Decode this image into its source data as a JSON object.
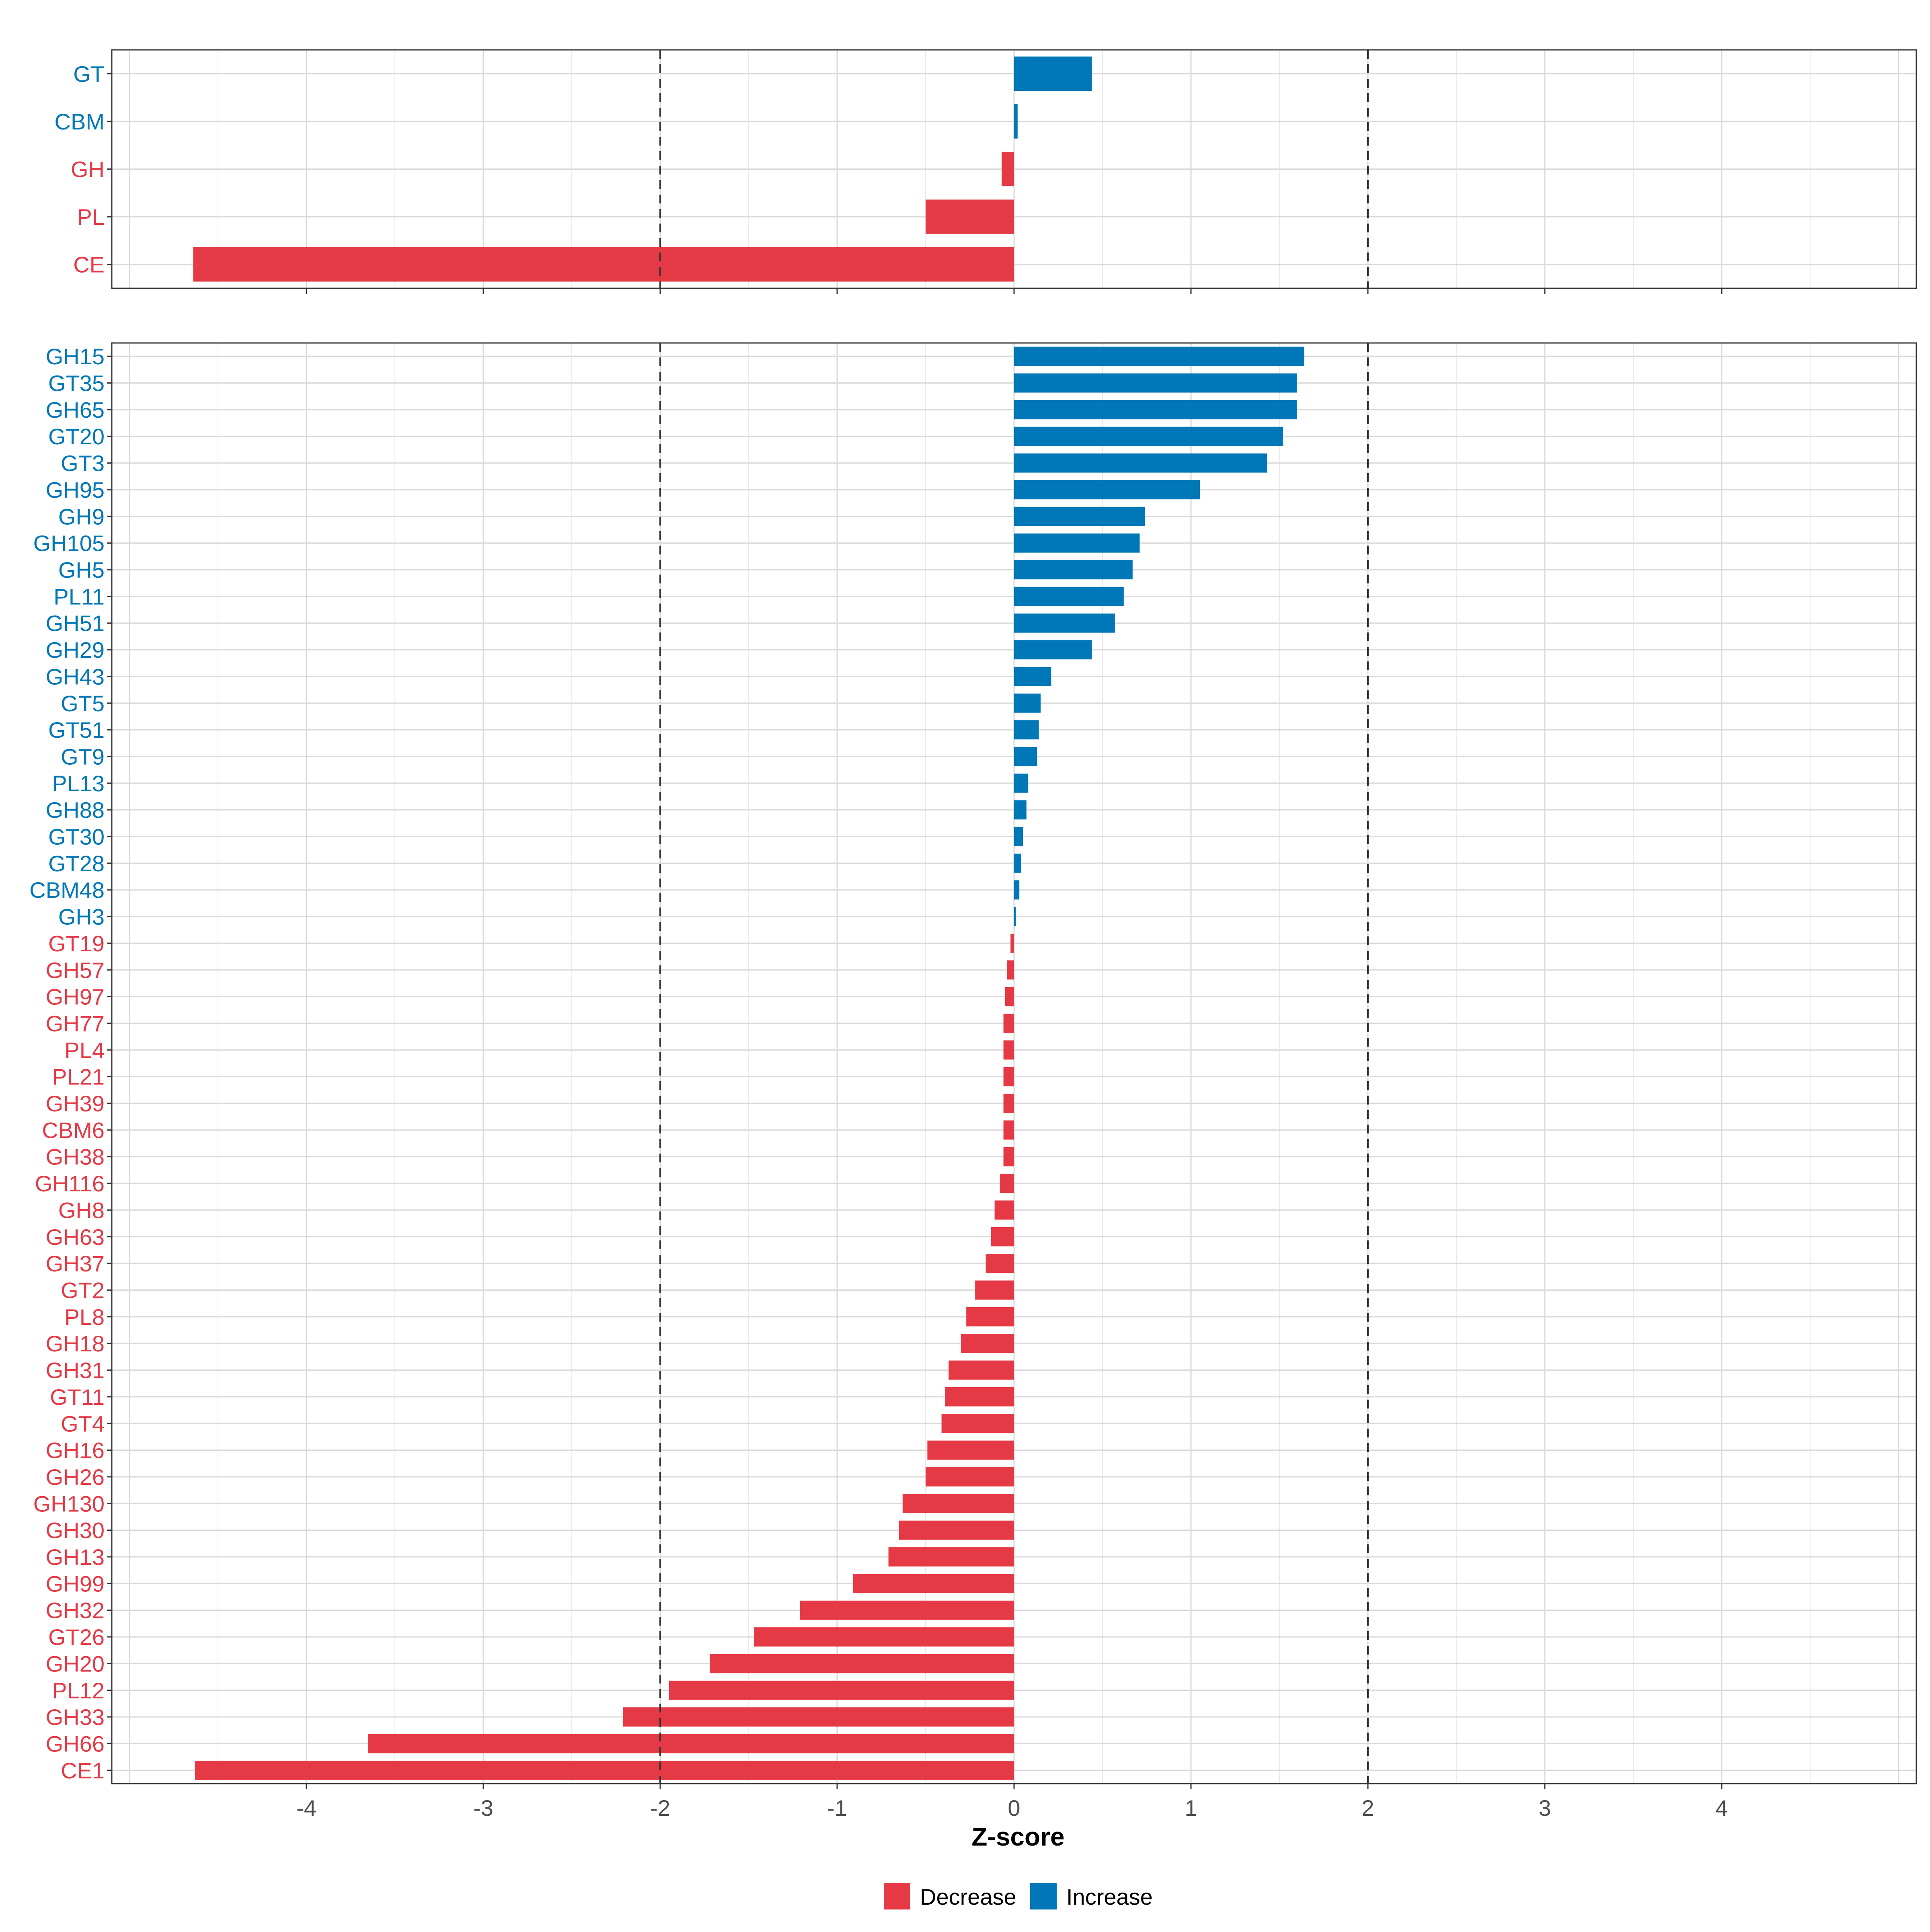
{
  "colors": {
    "decrease": "#E63946",
    "increase": "#0077B6"
  },
  "chart_data": [
    {
      "type": "bar",
      "orientation": "horizontal",
      "panel": "top",
      "xlim": [
        -5.1,
        5.1
      ],
      "reference_lines": [
        -2,
        2
      ],
      "categories": [
        "GT",
        "CBM",
        "GH",
        "PL",
        "CE"
      ],
      "values": [
        0.44,
        0.02,
        -0.07,
        -0.5,
        -4.64
      ],
      "direction": [
        "Increase",
        "Increase",
        "Decrease",
        "Decrease",
        "Decrease"
      ]
    },
    {
      "type": "bar",
      "orientation": "horizontal",
      "panel": "bottom",
      "xlabel": "Z-score",
      "xlim": [
        -5.1,
        5.1
      ],
      "xticks": [
        -4,
        -3,
        -2,
        -1,
        0,
        1,
        2,
        3,
        4
      ],
      "xtick_labels": [
        "-4",
        "-3",
        "-2",
        "-1",
        "0",
        "1",
        "2",
        "3",
        "4"
      ],
      "reference_lines": [
        -2,
        2
      ],
      "categories": [
        "GH15",
        "GT35",
        "GH65",
        "GT20",
        "GT3",
        "GH95",
        "GH9",
        "GH105",
        "GH5",
        "PL11",
        "GH51",
        "GH29",
        "GH43",
        "GT5",
        "GT51",
        "GT9",
        "PL13",
        "GH88",
        "GT30",
        "GT28",
        "CBM48",
        "GH3",
        "GT19",
        "GH57",
        "GH97",
        "GH77",
        "PL4",
        "PL21",
        "GH39",
        "CBM6",
        "GH38",
        "GH116",
        "GH8",
        "GH63",
        "GH37",
        "GT2",
        "PL8",
        "GH18",
        "GH31",
        "GT11",
        "GT4",
        "GH16",
        "GH26",
        "GH130",
        "GH30",
        "GH13",
        "GH99",
        "GH32",
        "GT26",
        "GH20",
        "PL12",
        "GH33",
        "GH66",
        "CE1"
      ],
      "values": [
        1.64,
        1.6,
        1.6,
        1.52,
        1.43,
        1.05,
        0.74,
        0.71,
        0.67,
        0.62,
        0.57,
        0.44,
        0.21,
        0.15,
        0.14,
        0.13,
        0.08,
        0.07,
        0.05,
        0.04,
        0.03,
        0.01,
        -0.02,
        -0.04,
        -0.05,
        -0.06,
        -0.06,
        -0.06,
        -0.06,
        -0.06,
        -0.06,
        -0.08,
        -0.11,
        -0.13,
        -0.16,
        -0.22,
        -0.27,
        -0.3,
        -0.37,
        -0.39,
        -0.41,
        -0.49,
        -0.5,
        -0.63,
        -0.65,
        -0.71,
        -0.91,
        -1.21,
        -1.47,
        -1.72,
        -1.95,
        -2.21,
        -3.65,
        -4.63
      ],
      "direction": [
        "Increase",
        "Increase",
        "Increase",
        "Increase",
        "Increase",
        "Increase",
        "Increase",
        "Increase",
        "Increase",
        "Increase",
        "Increase",
        "Increase",
        "Increase",
        "Increase",
        "Increase",
        "Increase",
        "Increase",
        "Increase",
        "Increase",
        "Increase",
        "Increase",
        "Increase",
        "Decrease",
        "Decrease",
        "Decrease",
        "Decrease",
        "Decrease",
        "Decrease",
        "Decrease",
        "Decrease",
        "Decrease",
        "Decrease",
        "Decrease",
        "Decrease",
        "Decrease",
        "Decrease",
        "Decrease",
        "Decrease",
        "Decrease",
        "Decrease",
        "Decrease",
        "Decrease",
        "Decrease",
        "Decrease",
        "Decrease",
        "Decrease",
        "Decrease",
        "Decrease",
        "Decrease",
        "Decrease",
        "Decrease",
        "Decrease",
        "Decrease",
        "Decrease"
      ]
    }
  ],
  "legend": {
    "position": "bottom",
    "items": [
      {
        "label": "Decrease",
        "color": "#E63946"
      },
      {
        "label": "Increase",
        "color": "#0077B6"
      }
    ]
  }
}
